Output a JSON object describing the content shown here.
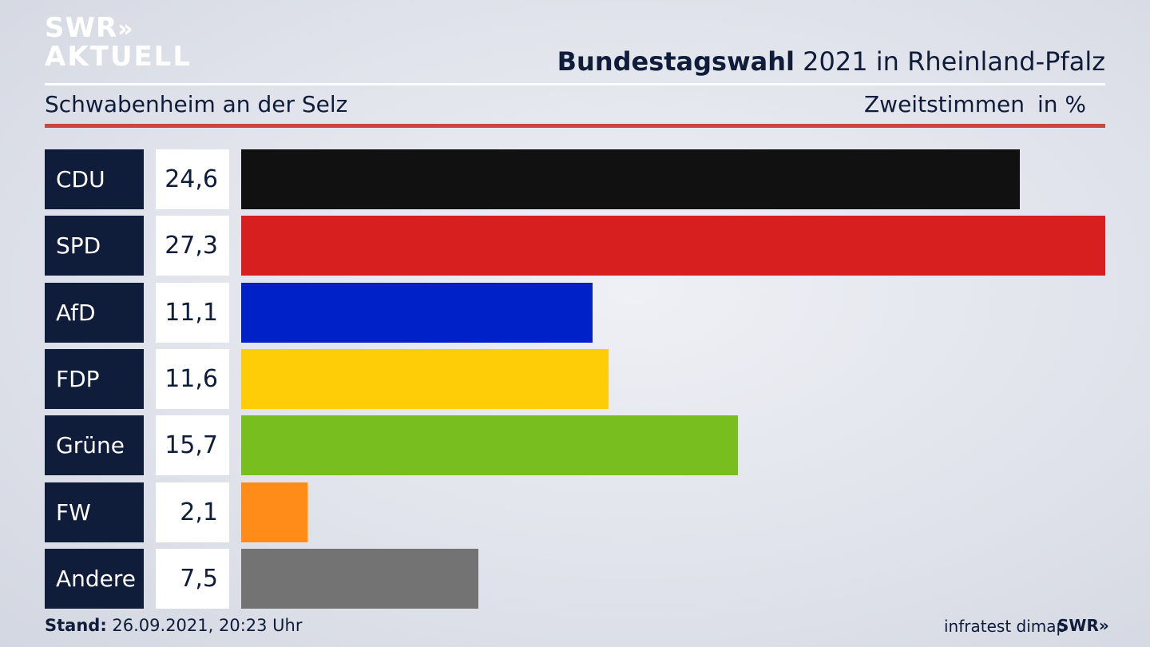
{
  "header": {
    "logo_line1": "SWR",
    "logo_chevrons": "»",
    "logo_line2": "AKTUELL",
    "title_bold": "Bundestagswahl",
    "title_rest": " 2021 in Rheinland-Pfalz",
    "subtitle": "Schwabenheim an der Selz",
    "vote_type": "Zweitstimmen",
    "unit": "in %"
  },
  "colors": {
    "CDU": "#111111",
    "SPD": "#d81f1f",
    "AfD": "#0020c8",
    "FDP": "#ffcc08",
    "Grüne": "#78be1e",
    "FW": "#ff8c18",
    "Andere": "#737373"
  },
  "chart_data": {
    "type": "bar",
    "orientation": "horizontal",
    "categories": [
      "CDU",
      "SPD",
      "AfD",
      "FDP",
      "Grüne",
      "FW",
      "Andere"
    ],
    "values": [
      24.6,
      27.3,
      11.1,
      11.6,
      15.7,
      2.1,
      7.5
    ],
    "value_labels": [
      "24,6",
      "27,3",
      "11,1",
      "11,6",
      "15,7",
      "2,1",
      "7,5"
    ],
    "title": "Bundestagswahl 2021 in Rheinland-Pfalz",
    "subtitle": "Schwabenheim an der Selz",
    "xlabel": "Zweitstimmen",
    "ylabel": "in %",
    "xlim": [
      0,
      27.3
    ],
    "grid": false
  },
  "footer": {
    "stand_label": "Stand:",
    "stand_value": " 26.09.2021, 20:23 Uhr",
    "source": "infratest dimap",
    "swr": "SWR»"
  }
}
